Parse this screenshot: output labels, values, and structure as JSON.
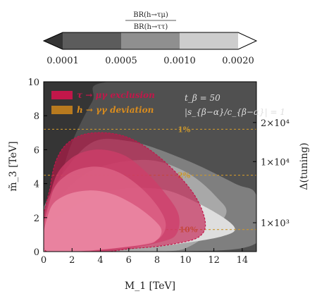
{
  "chart_data": {
    "type": "contour",
    "xlabel": "M_1 [TeV]",
    "ylabel": "m̃_3 [TeV]",
    "y2label": "Δ(tuning)",
    "xlim": [
      0,
      15
    ],
    "ylim": [
      0,
      10
    ],
    "x_ticks": [
      0,
      2,
      4,
      6,
      8,
      10,
      12,
      14
    ],
    "y_ticks": [
      0,
      2,
      4,
      6,
      8,
      10
    ],
    "y2_ticks": [
      {
        "label": "2×10⁴",
        "m3": 7.6
      },
      {
        "label": "1×10⁴",
        "m3": 5.3
      },
      {
        "label": "1×10³",
        "m3": 1.7
      }
    ],
    "colorbar": {
      "title_num": "BR(h→τμ)",
      "title_den": "BR(h→ττ)",
      "levels": [
        "0.0001",
        "0.0005",
        "0.0010",
        "0.0020"
      ],
      "colors": [
        "#353535",
        "#5c5c5c",
        "#8f8f8f",
        "#cdcdcd",
        "#ffffff"
      ]
    },
    "contour_bands": [
      {
        "range": "<0.0001",
        "color": "#353535"
      },
      {
        "range": "0.0001-0.0005",
        "color": "#505050",
        "outer_points": [
          [
            0.2,
            0
          ],
          [
            0.8,
            2.8
          ],
          [
            1.8,
            6.0
          ],
          [
            3.4,
            8.8
          ],
          [
            4.6,
            10
          ]
        ]
      },
      {
        "range": "0.0005-0.0010",
        "color": "#7f7f7f",
        "outer_points": [
          [
            0,
            2.6
          ],
          [
            3,
            6.2
          ],
          [
            6,
            6.5
          ],
          [
            10,
            5.4
          ],
          [
            13.5,
            4.0
          ],
          [
            15,
            3.3
          ],
          [
            15,
            0.5
          ],
          [
            9,
            0
          ]
        ]
      },
      {
        "range": "0.0010-0.0020",
        "color": "#a8a8a8",
        "outer_points": [
          [
            0,
            1.9
          ],
          [
            3,
            4.6
          ],
          [
            7,
            5.4
          ],
          [
            10,
            4.7
          ],
          [
            12.2,
            3.2
          ],
          [
            12.8,
            2.1
          ],
          [
            10.5,
            0.4
          ],
          [
            8,
            0
          ]
        ]
      },
      {
        "range": ">0.0020",
        "color": "#dedede",
        "outer_points": [
          [
            0,
            1.4
          ],
          [
            4,
            3.4
          ],
          [
            8,
            3.7
          ],
          [
            11,
            2.8
          ],
          [
            13.4,
            1.5
          ],
          [
            12.6,
            0.9
          ],
          [
            9,
            0.4
          ],
          [
            6,
            0.2
          ]
        ]
      }
    ],
    "tuning_lines": [
      {
        "label": "1%",
        "m3": 7.2,
        "label_x": 9.9
      },
      {
        "label": "2%",
        "m3": 4.5,
        "label_x": 9.9
      },
      {
        "label": "10%",
        "m3": 1.3,
        "label_x": 10.2
      }
    ],
    "exclusion_regions": [
      {
        "name": "τ → μγ exclusion",
        "color": "#c2174a",
        "boundary": [
          [
            0.2,
            0
          ],
          [
            0.5,
            4.0
          ],
          [
            1.2,
            5.9
          ],
          [
            2.5,
            6.8
          ],
          [
            4.2,
            7.0
          ],
          [
            6.0,
            6.7
          ],
          [
            7.8,
            5.8
          ],
          [
            9.5,
            4.5
          ],
          [
            10.8,
            3.1
          ],
          [
            11.4,
            1.7
          ],
          [
            11.0,
            0.9
          ],
          [
            9.5,
            0.5
          ],
          [
            6.5,
            0.2
          ]
        ]
      },
      {
        "name": "h → γγ deviation",
        "color": "#b87a1f",
        "layers": [
          [
            [
              0.1,
              0
            ],
            [
              0.6,
              3.8
            ],
            [
              1.8,
              5.4
            ],
            [
              3.6,
              6.0
            ],
            [
              5.6,
              5.7
            ],
            [
              7.2,
              4.7
            ],
            [
              8.6,
              3.4
            ],
            [
              9.5,
              2.2
            ],
            [
              9.4,
              1.1
            ],
            [
              8.4,
              0.6
            ],
            [
              5,
              0.1
            ]
          ],
          [
            [
              0.1,
              0
            ],
            [
              0.5,
              3.2
            ],
            [
              1.6,
              4.5
            ],
            [
              3.4,
              5.0
            ],
            [
              5.2,
              4.7
            ],
            [
              6.8,
              3.8
            ],
            [
              8.0,
              2.7
            ],
            [
              8.6,
              1.7
            ],
            [
              8.3,
              0.9
            ],
            [
              7.3,
              0.5
            ],
            [
              4,
              0.1
            ]
          ],
          [
            [
              0.1,
              0
            ],
            [
              0.4,
              2.4
            ],
            [
              1.5,
              3.3
            ],
            [
              3.2,
              3.6
            ],
            [
              4.8,
              3.4
            ],
            [
              6.3,
              2.8
            ],
            [
              7.6,
              2.0
            ],
            [
              8.3,
              1.3
            ],
            [
              8.0,
              0.7
            ],
            [
              7.0,
              0.4
            ],
            [
              3,
              0.05
            ]
          ]
        ]
      }
    ],
    "legend": {
      "placement": "top-left",
      "items": [
        {
          "label": "τ → μγ exclusion",
          "color": "#c2174a",
          "text_color": "#c2174a"
        },
        {
          "label": "h → γγ deviation",
          "color": "#b87a1f",
          "text_color": "#d98c1e"
        }
      ]
    },
    "annotation": {
      "line1": "t_β = 50",
      "line2": "|s_{β−α}/c_{β−α}| = 1"
    }
  }
}
